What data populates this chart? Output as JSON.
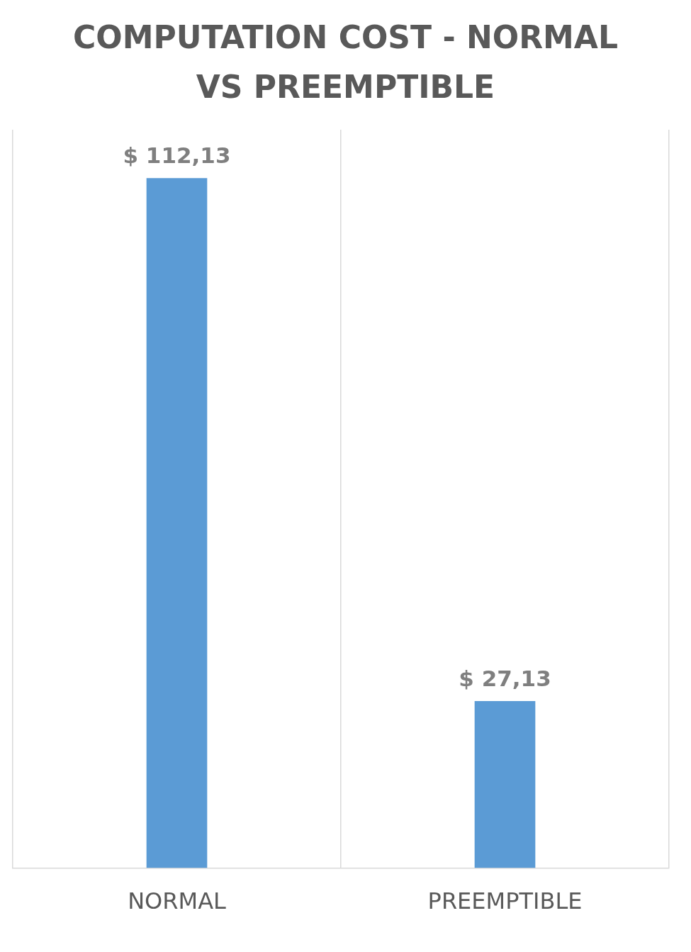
{
  "chart_data": {
    "type": "bar",
    "title": "COMPUTATION COST - NORMAL VS PREEMPTIBLE",
    "categories": [
      "NORMAL",
      "PREEMPTIBLE"
    ],
    "values": [
      112.13,
      27.13
    ],
    "value_labels": [
      "$ 112,13",
      "$ 27,13"
    ],
    "color": "#5b9bd5",
    "ylim": [
      0,
      120
    ],
    "grid": "x",
    "legend": false
  }
}
